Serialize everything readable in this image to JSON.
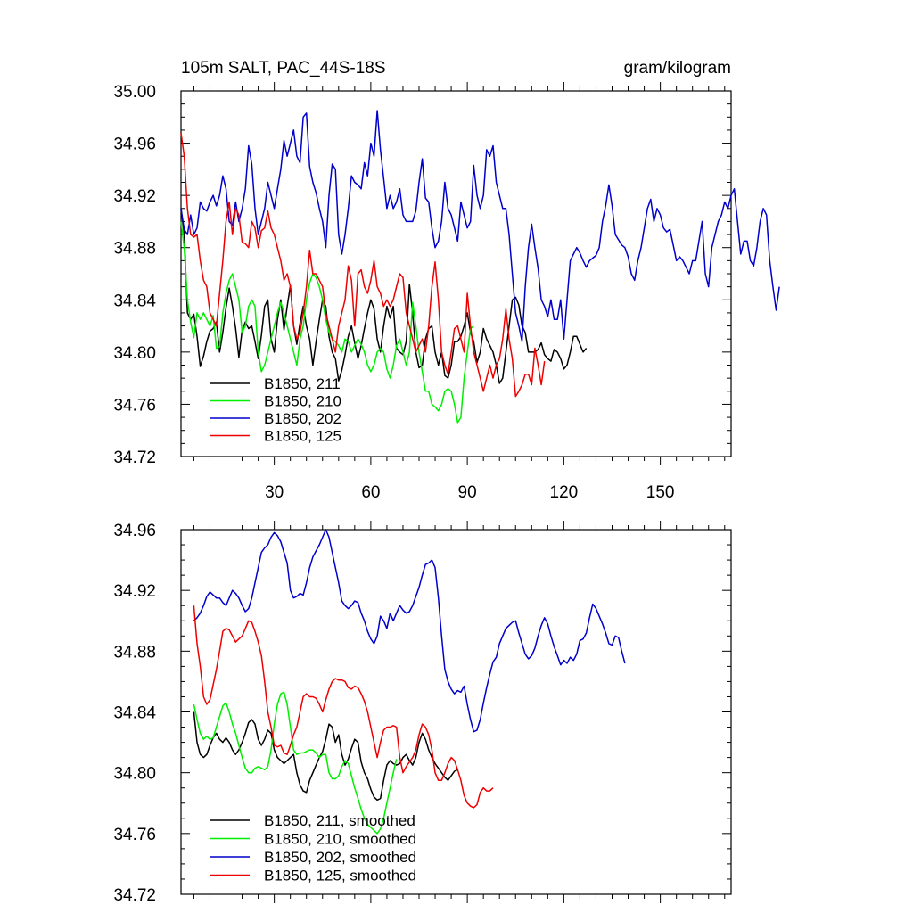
{
  "chart_data": [
    {
      "type": "line",
      "title": "105m SALT, PAC_44S-18S",
      "units": "gram/kilogram",
      "xlim": [
        1,
        172
      ],
      "ylim": [
        34.72,
        35.0
      ],
      "xticks": [
        30,
        60,
        90,
        120,
        150
      ],
      "yticks": [
        "34.72",
        "34.76",
        "34.80",
        "34.84",
        "34.88",
        "34.92",
        "34.96",
        "35.00"
      ],
      "legend_position": "bottom-left",
      "series": [
        {
          "name": "B1850, 211",
          "color": "#000000",
          "x_start": 1,
          "values": [
            34.91,
            34.89,
            34.83,
            34.825,
            34.829,
            34.812,
            34.789,
            34.797,
            34.808,
            34.816,
            34.818,
            34.823,
            34.8,
            34.815,
            34.834,
            34.849,
            34.835,
            34.818,
            34.796,
            34.817,
            34.823,
            34.818,
            34.82,
            34.808,
            34.795,
            34.813,
            34.835,
            34.84,
            34.81,
            34.8,
            34.825,
            34.84,
            34.817,
            34.835,
            34.851,
            34.82,
            34.806,
            34.822,
            34.835,
            34.82,
            34.81,
            34.79,
            34.808,
            34.825,
            34.84,
            34.835,
            34.812,
            34.8,
            34.795,
            34.778,
            34.786,
            34.798,
            34.812,
            34.82,
            34.807,
            34.795,
            34.805,
            34.818,
            34.83,
            34.84,
            34.833,
            34.81,
            34.8,
            34.82,
            34.835,
            34.826,
            34.835,
            34.803,
            34.8,
            34.798,
            34.808,
            34.852,
            34.83,
            34.8,
            34.788,
            34.79,
            34.81,
            34.818,
            34.82,
            34.8,
            34.79,
            34.8,
            34.782,
            34.78,
            34.79,
            34.808,
            34.808,
            34.812,
            34.82,
            34.83,
            34.815,
            34.808,
            34.792,
            34.8,
            34.818,
            34.81,
            34.805,
            34.8,
            34.79,
            34.776,
            34.78,
            34.8,
            34.82,
            34.84,
            34.842,
            34.836,
            34.82,
            34.815,
            34.8,
            34.8,
            34.8,
            34.802,
            34.807,
            34.798,
            34.795,
            34.793,
            34.802,
            34.8,
            34.795,
            34.787,
            34.79,
            34.8,
            34.812,
            34.812,
            34.806,
            34.8,
            34.803
          ]
        },
        {
          "name": "B1850, 210",
          "color": "#00ee00",
          "x_start": 1,
          "values": [
            34.9,
            34.88,
            34.84,
            34.823,
            34.811,
            34.83,
            34.825,
            34.83,
            34.825,
            34.82,
            34.828,
            34.803,
            34.804,
            34.83,
            34.845,
            34.855,
            34.86,
            34.85,
            34.84,
            34.815,
            34.82,
            34.835,
            34.84,
            34.835,
            34.8,
            34.785,
            34.79,
            34.8,
            34.81,
            34.82,
            34.83,
            34.838,
            34.83,
            34.82,
            34.81,
            34.8,
            34.79,
            34.81,
            34.82,
            34.84,
            34.853,
            34.86,
            34.857,
            34.85,
            34.84,
            34.825,
            34.815,
            34.81,
            34.808,
            34.805,
            34.8,
            34.81,
            34.808,
            34.8,
            34.805,
            34.81,
            34.806,
            34.8,
            34.79,
            34.785,
            34.79,
            34.8,
            34.803,
            34.8,
            34.787,
            34.78,
            34.79,
            34.805,
            34.81,
            34.8,
            34.79,
            34.8,
            34.838,
            34.82,
            34.8,
            34.785,
            34.77,
            34.77,
            34.76,
            34.758,
            34.755,
            34.76,
            34.77,
            34.772,
            34.77,
            34.76,
            34.746,
            34.75,
            34.78,
            34.8,
            34.818,
            34.82
          ]
        },
        {
          "name": "B1850, 202",
          "color": "#0000cc",
          "x_start": 1,
          "values": [
            34.91,
            34.894,
            34.89,
            34.905,
            34.89,
            34.895,
            34.915,
            34.91,
            34.908,
            34.915,
            34.92,
            34.912,
            34.92,
            34.935,
            34.925,
            34.9,
            34.897,
            34.915,
            34.9,
            34.91,
            34.925,
            34.958,
            34.944,
            34.91,
            34.89,
            34.9,
            34.91,
            34.93,
            34.92,
            34.91,
            34.925,
            34.94,
            34.962,
            34.95,
            34.96,
            34.97,
            34.95,
            34.945,
            34.98,
            34.983,
            34.942,
            34.93,
            34.922,
            34.91,
            34.9,
            34.88,
            34.92,
            34.944,
            34.94,
            34.89,
            34.875,
            34.89,
            34.91,
            34.935,
            34.93,
            34.928,
            34.925,
            34.945,
            34.935,
            34.96,
            34.95,
            34.985,
            34.955,
            34.933,
            34.91,
            34.92,
            34.91,
            34.915,
            34.925,
            34.905,
            34.9,
            34.9,
            34.9,
            34.908,
            34.93,
            34.948,
            34.918,
            34.915,
            34.895,
            34.88,
            34.885,
            34.9,
            34.93,
            34.91,
            34.905,
            34.895,
            34.885,
            34.915,
            34.905,
            34.895,
            34.9,
            34.943,
            34.92,
            34.91,
            34.92,
            34.955,
            34.95,
            34.958,
            34.93,
            34.92,
            34.91,
            34.91,
            34.89,
            34.86,
            34.83,
            34.82,
            34.808,
            34.85,
            34.88,
            34.898,
            34.88,
            34.864,
            34.84,
            34.835,
            34.827,
            34.84,
            34.825,
            34.825,
            34.84,
            34.81,
            34.84,
            34.87,
            34.875,
            34.88,
            34.876,
            34.87,
            34.865,
            34.87,
            34.872,
            34.874,
            34.88,
            34.9,
            34.912,
            34.928,
            34.912,
            34.89,
            34.886,
            34.882,
            34.88,
            34.873,
            34.86,
            34.855,
            34.87,
            34.88,
            34.895,
            34.91,
            34.917,
            34.9,
            34.91,
            34.905,
            34.895,
            34.892,
            34.894,
            34.882,
            34.87,
            34.873,
            34.87,
            34.865,
            34.86,
            34.87,
            34.87,
            34.885,
            34.9,
            34.86,
            34.85,
            34.88,
            34.89,
            34.9,
            34.905,
            34.915,
            34.91,
            34.92,
            34.925,
            34.9,
            34.875,
            34.885,
            34.885,
            34.87,
            34.866,
            34.88,
            34.9,
            34.91,
            34.905,
            34.87,
            34.85,
            34.832,
            34.85
          ]
        },
        {
          "name": "B1850, 125",
          "color": "#ee0000",
          "x_start": 1,
          "values": [
            34.968,
            34.95,
            34.91,
            34.89,
            34.888,
            34.89,
            34.87,
            34.855,
            34.85,
            34.83,
            34.825,
            34.82,
            34.845,
            34.87,
            34.9,
            34.915,
            34.89,
            34.91,
            34.905,
            34.884,
            34.883,
            34.88,
            34.9,
            34.895,
            34.88,
            34.893,
            34.895,
            34.908,
            34.895,
            34.89,
            34.88,
            34.87,
            34.855,
            34.86,
            34.85,
            34.82,
            34.81,
            34.815,
            34.83,
            34.85,
            34.878,
            34.86,
            34.86,
            34.855,
            34.85,
            34.83,
            34.82,
            34.81,
            34.8,
            34.82,
            34.83,
            34.84,
            34.866,
            34.855,
            34.82,
            34.86,
            34.863,
            34.85,
            34.845,
            34.855,
            34.87,
            34.85,
            34.845,
            34.835,
            34.84,
            34.835,
            34.84,
            34.85,
            34.86,
            34.857,
            34.83,
            34.82,
            34.81,
            34.8,
            34.805,
            34.81,
            34.8,
            34.82,
            34.85,
            34.869,
            34.84,
            34.8,
            34.79,
            34.783,
            34.8,
            34.818,
            34.82,
            34.81,
            34.8,
            34.845,
            34.82,
            34.8,
            34.79,
            34.78,
            34.77,
            34.78,
            34.79,
            34.78,
            34.79,
            34.795,
            34.81,
            34.833,
            34.81,
            34.795,
            34.766,
            34.77,
            34.775,
            34.783,
            34.783,
            34.775,
            34.803,
            34.79,
            34.775,
            34.793
          ]
        }
      ]
    },
    {
      "type": "line",
      "xlim": [
        1,
        172
      ],
      "ylim": [
        34.72,
        34.96
      ],
      "xticks": [
        30,
        60,
        90,
        120,
        150
      ],
      "yticks": [
        "34.72",
        "34.76",
        "34.80",
        "34.84",
        "34.88",
        "34.92",
        "34.96"
      ],
      "legend_position": "bottom-left",
      "series": [
        {
          "name": "B1850, 211, smoothed",
          "color": "#000000",
          "x_start": 5,
          "values": [
            34.84,
            34.82,
            34.812,
            34.81,
            34.812,
            34.818,
            34.823,
            34.826,
            34.822,
            34.82,
            34.823,
            34.82,
            34.815,
            34.812,
            34.815,
            34.82,
            34.826,
            34.833,
            34.835,
            34.832,
            34.822,
            34.818,
            34.822,
            34.828,
            34.826,
            34.815,
            34.81,
            34.808,
            34.806,
            34.808,
            34.81,
            34.812,
            34.8,
            34.792,
            34.788,
            34.787,
            34.795,
            34.8,
            34.805,
            34.81,
            34.814,
            34.822,
            34.832,
            34.83,
            34.82,
            34.825,
            34.812,
            34.805,
            34.809,
            34.816,
            34.822,
            34.82,
            34.807,
            34.8,
            34.796,
            34.789,
            34.784,
            34.782,
            34.783,
            34.795,
            34.805,
            34.808,
            34.806,
            34.805,
            34.806,
            34.81,
            34.812,
            34.808,
            34.805,
            34.81,
            34.82,
            34.826,
            34.822,
            34.815,
            34.81,
            34.806,
            34.803,
            34.8,
            34.797,
            34.795,
            34.798,
            34.801,
            34.802
          ]
        },
        {
          "name": "B1850, 210, smoothed",
          "color": "#00ee00",
          "x_start": 5,
          "values": [
            34.845,
            34.835,
            34.826,
            34.822,
            34.824,
            34.822,
            34.823,
            34.83,
            34.837,
            34.844,
            34.846,
            34.84,
            34.832,
            34.826,
            34.818,
            34.81,
            34.803,
            34.8,
            34.8,
            34.803,
            34.804,
            34.803,
            34.802,
            34.804,
            34.815,
            34.832,
            34.845,
            34.852,
            34.853,
            34.845,
            34.83,
            34.815,
            34.812,
            34.813,
            34.813,
            34.814,
            34.815,
            34.815,
            34.813,
            34.81,
            34.812,
            34.812,
            34.8,
            34.796,
            34.796,
            34.798,
            34.804,
            34.808,
            34.806,
            34.798,
            34.79,
            34.783,
            34.776,
            34.77,
            34.766,
            34.764,
            34.762,
            34.76,
            34.763,
            34.77,
            34.78,
            34.79,
            34.8,
            34.809
          ]
        },
        {
          "name": "B1850, 202, smoothed",
          "color": "#0000cc",
          "x_start": 5,
          "values": [
            34.9,
            34.902,
            34.905,
            34.91,
            34.916,
            34.919,
            34.917,
            34.915,
            34.915,
            34.912,
            34.91,
            34.915,
            34.92,
            34.918,
            34.915,
            34.91,
            34.906,
            34.908,
            34.915,
            34.925,
            34.935,
            34.945,
            34.948,
            34.95,
            34.955,
            34.958,
            34.956,
            34.952,
            34.945,
            34.938,
            34.92,
            34.915,
            34.916,
            34.918,
            34.917,
            34.925,
            34.935,
            34.942,
            34.946,
            34.95,
            34.955,
            34.96,
            34.955,
            34.945,
            34.935,
            34.925,
            34.913,
            34.91,
            34.908,
            34.91,
            34.913,
            34.912,
            34.905,
            34.9,
            34.893,
            34.888,
            34.885,
            34.89,
            34.903,
            34.9,
            34.895,
            34.905,
            34.9,
            34.905,
            34.91,
            34.907,
            34.905,
            34.906,
            34.91,
            34.916,
            34.922,
            34.93,
            34.937,
            34.938,
            34.94,
            34.935,
            34.915,
            34.89,
            34.868,
            34.86,
            34.855,
            34.852,
            34.854,
            34.853,
            34.857,
            34.845,
            34.835,
            34.827,
            34.828,
            34.835,
            34.846,
            34.856,
            34.865,
            34.873,
            34.876,
            34.885,
            34.89,
            34.895,
            34.897,
            34.899,
            34.9,
            34.892,
            34.885,
            34.878,
            34.875,
            34.877,
            34.882,
            34.89,
            34.897,
            34.902,
            34.898,
            34.89,
            34.883,
            34.877,
            34.871,
            34.874,
            34.872,
            34.876,
            34.874,
            34.878,
            34.887,
            34.888,
            34.892,
            34.902,
            34.911,
            34.908,
            34.903,
            34.898,
            34.892,
            34.885,
            34.884,
            34.89,
            34.889,
            34.88,
            34.872
          ]
        },
        {
          "name": "B1850, 125, smoothed",
          "color": "#ee0000",
          "x_start": 5,
          "values": [
            34.91,
            34.885,
            34.87,
            34.85,
            34.845,
            34.848,
            34.858,
            34.868,
            34.88,
            34.893,
            34.895,
            34.894,
            34.89,
            34.886,
            34.888,
            34.89,
            34.895,
            34.9,
            34.899,
            34.893,
            34.886,
            34.877,
            34.86,
            34.84,
            34.83,
            34.818,
            34.817,
            34.818,
            34.813,
            34.812,
            34.818,
            34.825,
            34.83,
            34.84,
            34.85,
            34.852,
            34.85,
            34.85,
            34.849,
            34.845,
            34.84,
            34.848,
            34.855,
            34.86,
            34.862,
            34.861,
            34.861,
            34.86,
            34.856,
            34.855,
            34.857,
            34.856,
            34.852,
            34.847,
            34.84,
            34.83,
            34.82,
            34.81,
            34.82,
            34.828,
            34.83,
            34.83,
            34.831,
            34.83,
            34.81,
            34.8,
            34.804,
            34.807,
            34.81,
            34.815,
            34.825,
            34.832,
            34.83,
            34.825,
            34.815,
            34.8,
            34.795,
            34.795,
            34.8,
            34.806,
            34.81,
            34.808,
            34.802,
            34.795,
            34.785,
            34.78,
            34.778,
            34.777,
            34.779,
            34.787,
            34.79,
            34.788,
            34.788,
            34.79
          ]
        }
      ]
    }
  ]
}
